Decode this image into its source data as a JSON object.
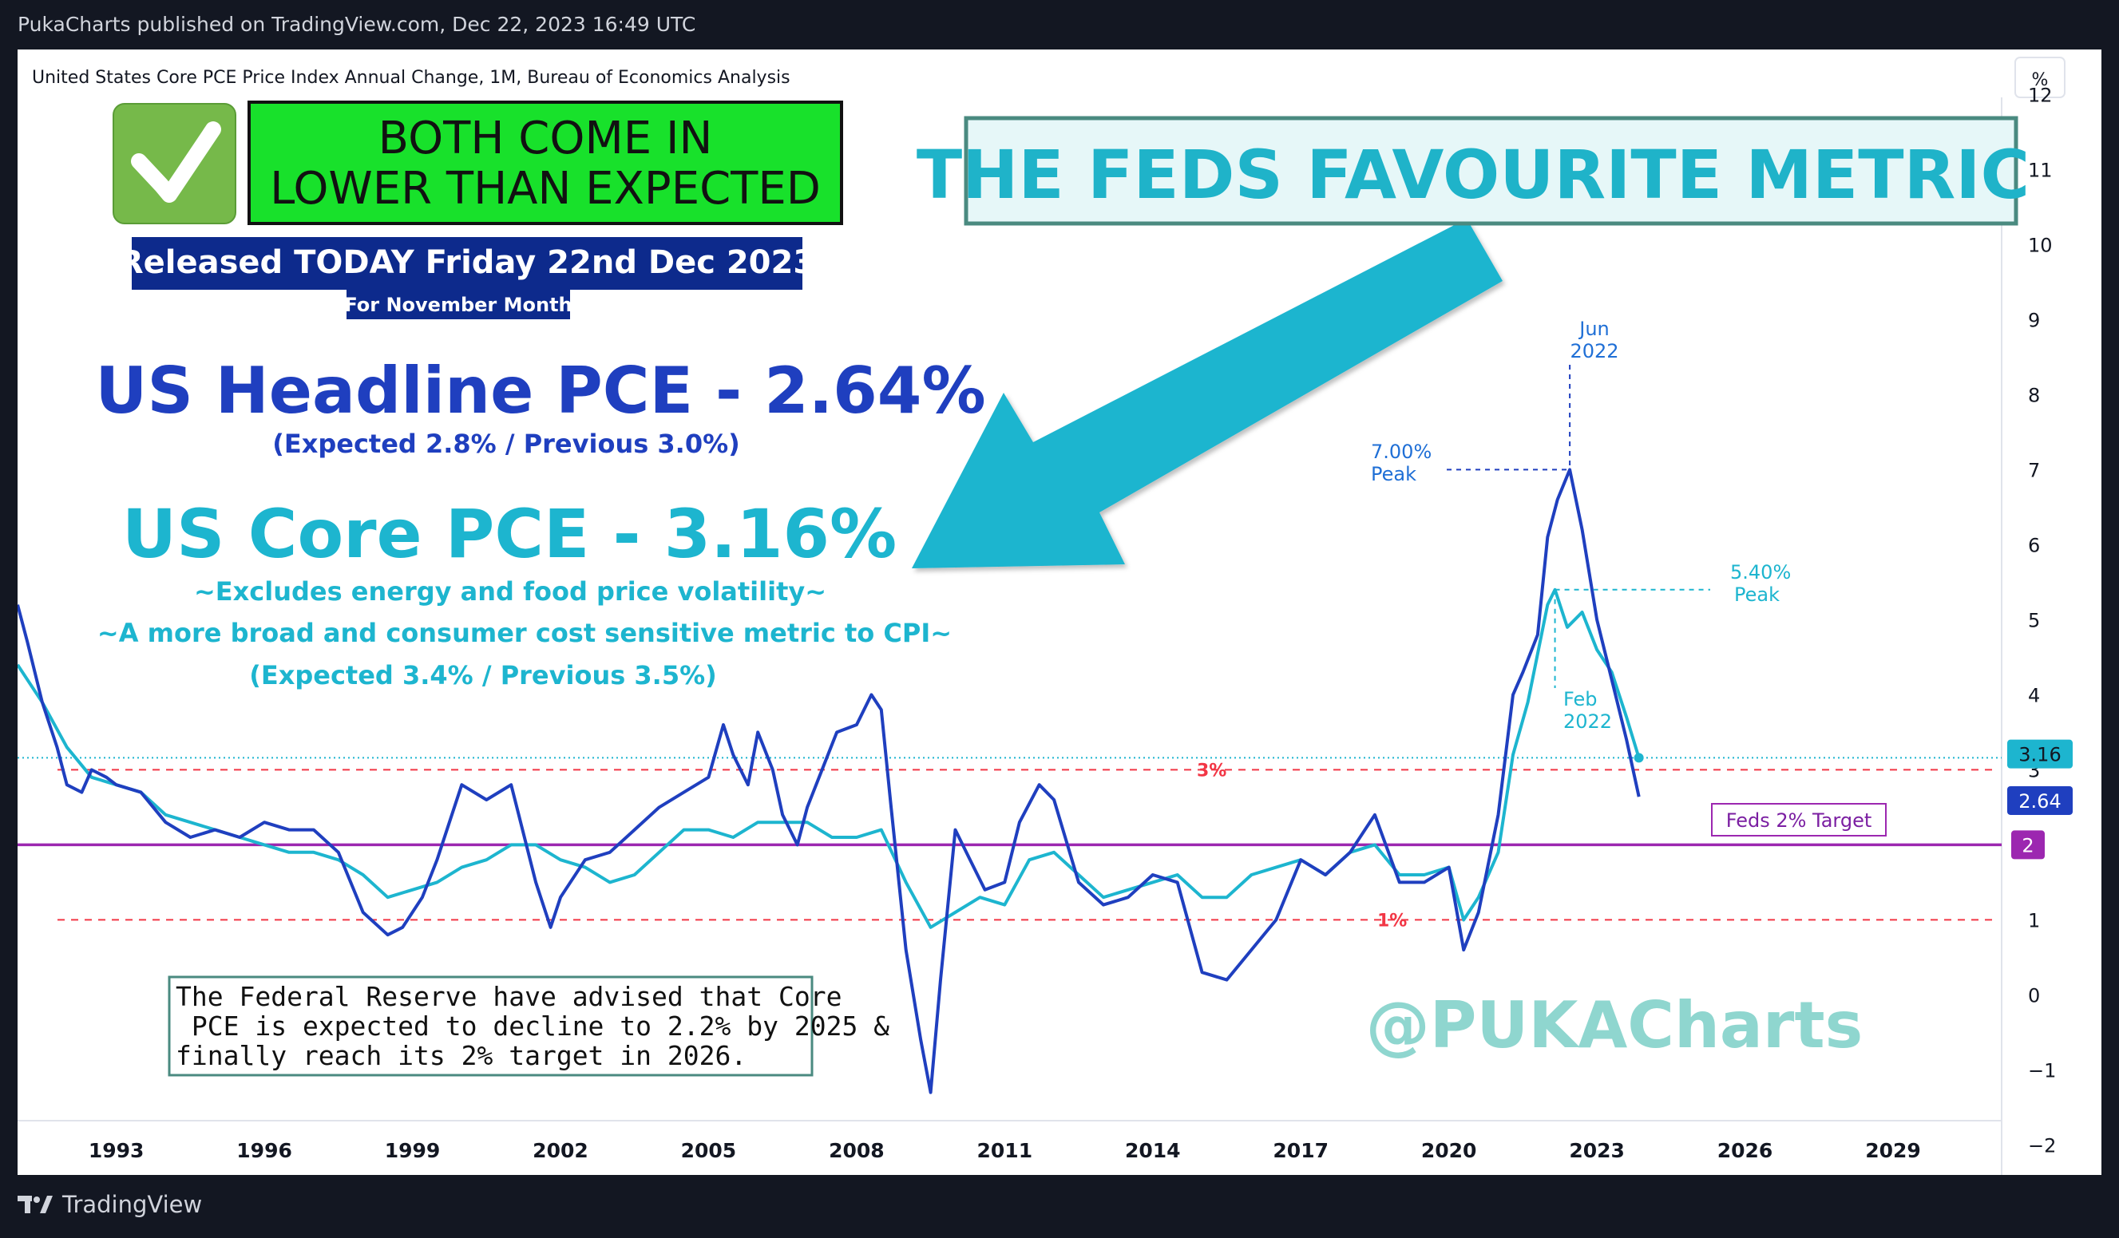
{
  "header": {
    "published": "PukaCharts published on TradingView.com, Dec 22, 2023 16:49 UTC"
  },
  "footer": {
    "brand": "TradingView"
  },
  "colors": {
    "headline": "#1f3fbf",
    "core": "#1db5cf",
    "target": "#9c27b0",
    "ref": "#f23645",
    "green_box": "#18e12b",
    "navy": "#0d2a8c",
    "teal_title": "#1fb3c9",
    "watermark": "#8fd6cf"
  },
  "annotations": {
    "badge_line1": "BOTH COME IN",
    "badge_line2": "LOWER THAN EXPECTED",
    "released": "Released TODAY Friday 22nd Dec 2023",
    "for_month": "For November Month",
    "headline_title": "US Headline PCE - 2.64%",
    "headline_sub": "(Expected 2.8% / Previous 3.0%)",
    "core_title": "US Core PCE - 3.16%",
    "core_sub1": "~Excludes energy and food price volatility~",
    "core_sub2": "~A more broad and consumer cost sensitive metric to CPI~",
    "core_sub3": "(Expected 3.4% / Previous 3.5%)",
    "feds_title": "THE FEDS FAVOURITE METRIC",
    "note_line1": "The Federal Reserve have advised that Core",
    "note_line2": " PCE is expected to decline to 2.2% by 2025 &",
    "note_line3": "finally reach its 2% target in 2026.",
    "watermark": "@PUKACharts",
    "jun": "Jun",
    "jun_year": "2022",
    "peak_700": "7.00%",
    "peak_word1": "Peak",
    "peak_540": "5.40%",
    "peak_word2": "Peak",
    "feb": "Feb",
    "feb_year": "2022",
    "three_pct": "3%",
    "one_pct": "1%",
    "fed_target": "Feds 2% Target"
  },
  "chart_data": {
    "type": "line",
    "title": "United States Core PCE Price Index Annual Change, 1M, Bureau of Economics Analysis",
    "unit_label": "%",
    "ylim": [
      -2.4,
      12.6
    ],
    "xlim": [
      1991.0,
      2031.2
    ],
    "y_ticks": [
      "12",
      "11",
      "10",
      "9",
      "8",
      "7",
      "6",
      "5",
      "4",
      "3",
      "2",
      "1",
      "0",
      "−1",
      "−2"
    ],
    "y_tick_values": [
      12,
      11,
      10,
      9,
      8,
      7,
      6,
      5,
      4,
      3,
      2,
      1,
      0,
      -1,
      -2
    ],
    "x_ticks": [
      "1993",
      "1996",
      "1999",
      "2002",
      "2005",
      "2008",
      "2011",
      "2014",
      "2017",
      "2020",
      "2023",
      "2026",
      "2029"
    ],
    "x_tick_values": [
      1993,
      1996,
      1999,
      2002,
      2005,
      2008,
      2011,
      2014,
      2017,
      2020,
      2023,
      2026,
      2029
    ],
    "reference_lines": [
      {
        "label": "3%",
        "value": 3,
        "style": "dashed"
      },
      {
        "label": "1%",
        "value": 1,
        "style": "dashed"
      },
      {
        "label": "Feds 2% Target",
        "value": 2,
        "style": "solid"
      }
    ],
    "price_labels": [
      {
        "series": "Core PCE",
        "text": "3.16",
        "value": 3.16
      },
      {
        "series": "Headline PCE",
        "text": "2.64",
        "value": 2.64
      },
      {
        "series": "Fed Target",
        "text": "2",
        "value": 2
      }
    ],
    "series": [
      {
        "name": "Headline PCE",
        "x": [
          1991.0,
          1991.2,
          1991.5,
          1991.8,
          1992.0,
          1992.3,
          1992.5,
          1992.8,
          1993.0,
          1993.5,
          1994.0,
          1994.5,
          1995.0,
          1995.5,
          1996.0,
          1996.5,
          1997.0,
          1997.5,
          1998.0,
          1998.5,
          1998.8,
          1999.2,
          1999.5,
          2000.0,
          2000.5,
          2001.0,
          2001.5,
          2001.8,
          2002.0,
          2002.5,
          2003.0,
          2003.5,
          2004.0,
          2004.5,
          2005.0,
          2005.3,
          2005.5,
          2005.8,
          2006.0,
          2006.3,
          2006.5,
          2006.8,
          2007.0,
          2007.3,
          2007.6,
          2008.0,
          2008.3,
          2008.5,
          2008.7,
          2009.0,
          2009.3,
          2009.5,
          2009.7,
          2010.0,
          2010.3,
          2010.6,
          2011.0,
          2011.3,
          2011.7,
          2012.0,
          2012.5,
          2013.0,
          2013.5,
          2014.0,
          2014.5,
          2015.0,
          2015.5,
          2016.0,
          2016.5,
          2017.0,
          2017.5,
          2018.0,
          2018.5,
          2019.0,
          2019.5,
          2020.0,
          2020.3,
          2020.6,
          2021.0,
          2021.3,
          2021.5,
          2021.8,
          2022.0,
          2022.2,
          2022.45,
          2022.7,
          2023.0,
          2023.3,
          2023.6,
          2023.85
        ],
        "values": [
          5.2,
          4.7,
          3.9,
          3.3,
          2.8,
          2.7,
          3.0,
          2.9,
          2.8,
          2.7,
          2.3,
          2.1,
          2.2,
          2.1,
          2.3,
          2.2,
          2.2,
          1.9,
          1.1,
          0.8,
          0.9,
          1.3,
          1.8,
          2.8,
          2.6,
          2.8,
          1.5,
          0.9,
          1.3,
          1.8,
          1.9,
          2.2,
          2.5,
          2.7,
          2.9,
          3.6,
          3.2,
          2.8,
          3.5,
          3.0,
          2.4,
          2.0,
          2.5,
          3.0,
          3.5,
          3.6,
          4.0,
          3.8,
          2.5,
          0.6,
          -0.6,
          -1.3,
          0.2,
          2.2,
          1.8,
          1.4,
          1.5,
          2.3,
          2.8,
          2.6,
          1.5,
          1.2,
          1.3,
          1.6,
          1.5,
          0.3,
          0.2,
          0.6,
          1.0,
          1.8,
          1.6,
          1.9,
          2.4,
          1.5,
          1.5,
          1.7,
          0.6,
          1.1,
          2.4,
          4.0,
          4.3,
          4.8,
          6.1,
          6.6,
          7.0,
          6.2,
          5.0,
          4.2,
          3.4,
          2.64
        ]
      },
      {
        "name": "Core PCE",
        "x": [
          1991.0,
          1991.5,
          1992.0,
          1992.5,
          1993.0,
          1993.5,
          1994.0,
          1994.5,
          1995.0,
          1995.5,
          1996.0,
          1996.5,
          1997.0,
          1997.5,
          1998.0,
          1998.5,
          1999.0,
          1999.5,
          2000.0,
          2000.5,
          2001.0,
          2001.5,
          2002.0,
          2002.5,
          2003.0,
          2003.5,
          2004.0,
          2004.5,
          2005.0,
          2005.5,
          2006.0,
          2006.5,
          2007.0,
          2007.5,
          2008.0,
          2008.5,
          2009.0,
          2009.5,
          2010.0,
          2010.5,
          2011.0,
          2011.5,
          2012.0,
          2012.5,
          2013.0,
          2013.5,
          2014.0,
          2014.5,
          2015.0,
          2015.5,
          2016.0,
          2016.5,
          2017.0,
          2017.5,
          2018.0,
          2018.5,
          2019.0,
          2019.5,
          2020.0,
          2020.3,
          2020.6,
          2021.0,
          2021.3,
          2021.6,
          2022.0,
          2022.15,
          2022.4,
          2022.7,
          2023.0,
          2023.3,
          2023.6,
          2023.85
        ],
        "values": [
          4.4,
          3.9,
          3.3,
          2.9,
          2.8,
          2.7,
          2.4,
          2.3,
          2.2,
          2.1,
          2.0,
          1.9,
          1.9,
          1.8,
          1.6,
          1.3,
          1.4,
          1.5,
          1.7,
          1.8,
          2.0,
          2.0,
          1.8,
          1.7,
          1.5,
          1.6,
          1.9,
          2.2,
          2.2,
          2.1,
          2.3,
          2.3,
          2.3,
          2.1,
          2.1,
          2.2,
          1.5,
          0.9,
          1.1,
          1.3,
          1.2,
          1.8,
          1.9,
          1.6,
          1.3,
          1.4,
          1.5,
          1.6,
          1.3,
          1.3,
          1.6,
          1.7,
          1.8,
          1.6,
          1.9,
          2.0,
          1.6,
          1.6,
          1.7,
          1.0,
          1.3,
          1.9,
          3.2,
          3.9,
          5.2,
          5.4,
          4.9,
          5.1,
          4.6,
          4.3,
          3.7,
          3.16
        ]
      }
    ]
  }
}
